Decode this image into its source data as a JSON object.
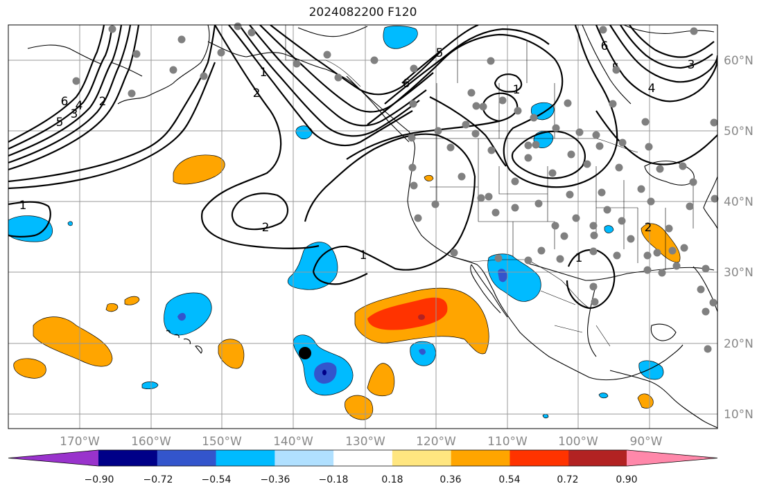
{
  "title": "2024082200 F120",
  "lon_labels": [
    "170°W",
    "160°W",
    "150°W",
    "140°W",
    "130°W",
    "120°W",
    "110°W",
    "100°W",
    "90°W"
  ],
  "lat_labels": [
    "60°N",
    "50°N",
    "40°N",
    "30°N",
    "20°N",
    "10°N"
  ],
  "colorbar": {
    "ticks": [
      "−0.90",
      "−0.72",
      "−0.54",
      "−0.36",
      "−0.18",
      "0.18",
      "0.36",
      "0.54",
      "0.72",
      "0.90"
    ],
    "colors": [
      "#9933cc",
      "#000088",
      "#3355cc",
      "#00bbff",
      "#b0e0ff",
      "#ffffff",
      "#ffe680",
      "#ffa500",
      "#ff3300",
      "#b22222",
      "#ff88aa"
    ]
  },
  "contour_labels": [
    "1",
    "2",
    "3",
    "4",
    "5",
    "6",
    "2",
    "1",
    "2",
    "1",
    "1",
    "2",
    "1",
    "3",
    "4",
    "5",
    "6",
    "5",
    "6"
  ],
  "marker_label": ""
}
